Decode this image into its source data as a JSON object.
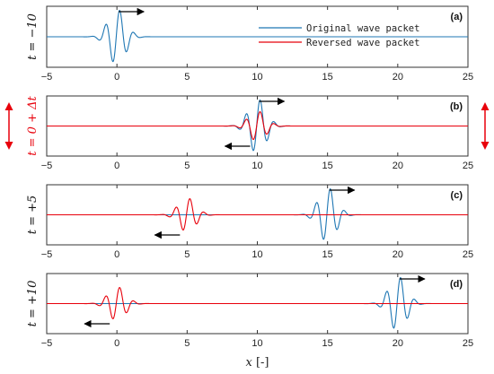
{
  "chart_data": {
    "type": "line",
    "x_axis": {
      "label_var": "x",
      "label_unit": "[-]",
      "ticks": [
        -5,
        0,
        5,
        10,
        15,
        20,
        25
      ],
      "xlim": [
        -5,
        25
      ]
    },
    "legend": {
      "placement": "top-right of panel (a)",
      "entries": [
        {
          "name": "Original wave packet",
          "color": "#1f77b4"
        },
        {
          "name": "Reversed wave packet",
          "color": "#e8000b"
        }
      ]
    },
    "panels": [
      {
        "label": "(a)",
        "ylabel": "t = −10",
        "ylabel_color": "#111111",
        "show_side_arrows": false,
        "packets": [
          {
            "series": "Original wave packet",
            "center": 0,
            "amplitude": 1.0,
            "arrow": "right"
          }
        ]
      },
      {
        "label": "(b)",
        "ylabel": "t = 0 + Δt",
        "ylabel_color": "#e8000b",
        "show_side_arrows": true,
        "packets": [
          {
            "series": "Original wave packet",
            "center": 10,
            "amplitude": 1.0,
            "arrow": "right"
          },
          {
            "series": "Reversed wave packet",
            "center": 10,
            "amplitude": 0.55,
            "arrow": "left"
          }
        ]
      },
      {
        "label": "(c)",
        "ylabel": "t = +5",
        "ylabel_color": "#111111",
        "show_side_arrows": false,
        "packets": [
          {
            "series": "Reversed wave packet",
            "center": 5,
            "amplitude": 0.62,
            "arrow": "left"
          },
          {
            "series": "Original wave packet",
            "center": 15,
            "amplitude": 1.0,
            "arrow": "right"
          }
        ]
      },
      {
        "label": "(d)",
        "ylabel": "t = +10",
        "ylabel_color": "#111111",
        "show_side_arrows": false,
        "packets": [
          {
            "series": "Reversed wave packet",
            "center": 0,
            "amplitude": 0.62,
            "arrow": "left"
          },
          {
            "series": "Original wave packet",
            "center": 20,
            "amplitude": 1.0,
            "arrow": "right"
          }
        ]
      }
    ]
  }
}
